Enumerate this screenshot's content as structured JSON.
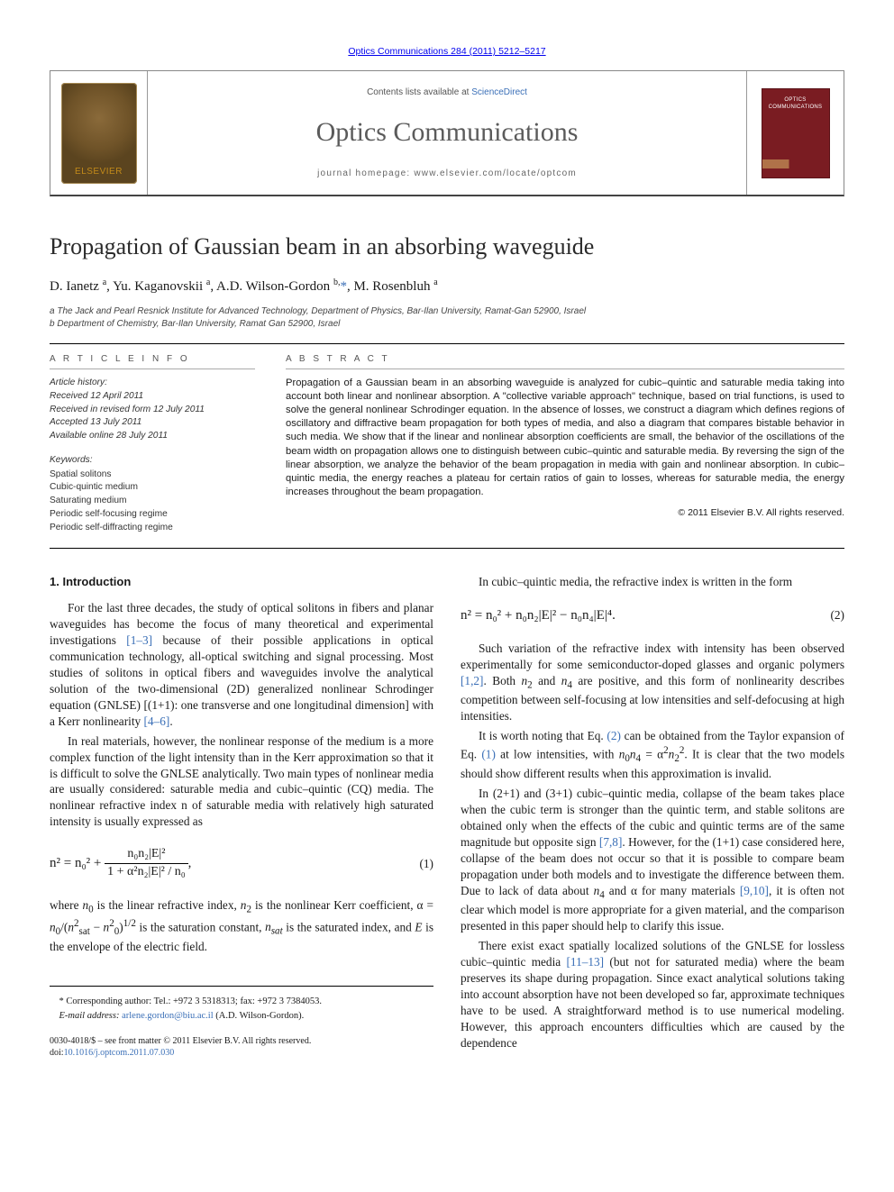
{
  "citation_line": "Optics Communications 284 (2011) 5212–5217",
  "masthead": {
    "sd_prefix": "Contents lists available at ",
    "sd_link": "ScienceDirect",
    "journal_name": "Optics Communications",
    "homepage": "journal homepage: www.elsevier.com/locate/optcom",
    "publisher_label": "ELSEVIER",
    "cover_title": "OPTICS COMMUNICATIONS"
  },
  "title": "Propagation of Gaussian beam in an absorbing waveguide",
  "authors_html": "D. Ianetz <span class='sup'>a</span>, Yu. Kaganovskii <span class='sup'>a</span>, A.D. Wilson-Gordon <span class='sup'>b,</span><a href='#' class='star'>*</a>, M. Rosenbluh <span class='sup'>a</span>",
  "affiliations": [
    "a The Jack and Pearl Resnick Institute for Advanced Technology, Department of Physics, Bar-Ilan University, Ramat-Gan 52900, Israel",
    "b Department of Chemistry, Bar-Ilan University, Ramat Gan 52900, Israel"
  ],
  "article_info": {
    "heading": "A R T I C L E   I N F O",
    "history_label": "Article history:",
    "history": [
      "Received 12 April 2011",
      "Received in revised form 12 July 2011",
      "Accepted 13 July 2011",
      "Available online 28 July 2011"
    ],
    "keywords_label": "Keywords:",
    "keywords": [
      "Spatial solitons",
      "Cubic-quintic medium",
      "Saturating medium",
      "Periodic self-focusing regime",
      "Periodic self-diffracting regime"
    ]
  },
  "abstract": {
    "heading": "A B S T R A C T",
    "text": "Propagation of a Gaussian beam in an absorbing waveguide is analyzed for cubic–quintic and saturable media taking into account both linear and nonlinear absorption. A \"collective variable approach\" technique, based on trial functions, is used to solve the general nonlinear Schrodinger equation. In the absence of losses, we construct a diagram which defines regions of oscillatory and diffractive beam propagation for both types of media, and also a diagram that compares bistable behavior in such media. We show that if the linear and nonlinear absorption coefficients are small, the behavior of the oscillations of the beam width on propagation allows one to distinguish between cubic–quintic and saturable media. By reversing the sign of the linear absorption, we analyze the behavior of the beam propagation in media with gain and nonlinear absorption. In cubic–quintic media, the energy reaches a plateau for certain ratios of gain to losses, whereas for saturable media, the energy increases throughout the beam propagation.",
    "copyright": "© 2011 Elsevier B.V. All rights reserved."
  },
  "section1_heading": "1. Introduction",
  "col_left": {
    "p1": "For the last three decades, the study of optical solitons in fibers and planar waveguides has become the focus of many theoretical and experimental investigations [1–3] because of their possible applications in optical communication technology, all-optical switching and signal processing. Most studies of solitons in optical fibers and waveguides involve the analytical solution of the two-dimensional (2D) generalized nonlinear Schrodinger equation (GNLSE) [(1+1): one transverse and one longitudinal dimension] with a Kerr nonlinearity [4–6].",
    "p2": "In real materials, however, the nonlinear response of the medium is a more complex function of the light intensity than in the Kerr approximation so that it is difficult to solve the GNLSE analytically. Two main types of nonlinear media are usually considered: saturable media and cubic–quintic (CQ) media. The nonlinear refractive index n of saturable media with relatively high saturated intensity is usually expressed as",
    "eq1_lhs": "n² = n₀² + ",
    "eq1_num": "n₀n₂|E|²",
    "eq1_den": "1 + α²n₂|E|² / n₀",
    "eq1_comma": ",",
    "eq1_no": "(1)",
    "p3": "where n₀ is the linear refractive index, n₂ is the nonlinear Kerr coefficient, α = n₀/(n²sat − n₀²)^{1/2} is the saturation constant, n_{sat} is the saturated index, and E is the envelope of the electric field."
  },
  "col_right": {
    "p1a": "In cubic–quintic media, the refractive index is written in the form",
    "eq2": "n² = n₀² + n₀n₂|E|² − n₀n₄|E|⁴.",
    "eq2_no": "(2)",
    "p2": "Such variation of the refractive index with intensity has been observed experimentally for some semiconductor-doped glasses and organic polymers [1,2]. Both n₂ and n₄ are positive, and this form of nonlinearity describes competition between self-focusing at low intensities and self-defocusing at high intensities.",
    "p3": "It is worth noting that Eq. (2) can be obtained from the Taylor expansion of Eq. (1) at low intensities, with n₀n₄ = α²n₂². It is clear that the two models should show different results when this approximation is invalid.",
    "p4": "In (2+1) and (3+1) cubic–quintic media, collapse of the beam takes place when the cubic term is stronger than the quintic term, and stable solitons are obtained only when the effects of the cubic and quintic terms are of the same magnitude but opposite sign [7,8]. However, for the (1+1) case considered here, collapse of the beam does not occur so that it is possible to compare beam propagation under both models and to investigate the difference between them. Due to lack of data about n₄ and α for many materials [9,10], it is often not clear which model is more appropriate for a given material, and the comparison presented in this paper should help to clarify this issue.",
    "p5": "There exist exact spatially localized solutions of the GNLSE for lossless cubic–quintic media [11–13] (but not for saturated media) where the beam preserves its shape during propagation. Since exact analytical solutions taking into account absorption have not been developed so far, approximate techniques have to be used. A straightforward method is to use numerical modeling. However, this approach encounters difficulties which are caused by the dependence"
  },
  "footnote": {
    "corr": "* Corresponding author: Tel.: +972 3 5318313; fax: +972 3 7384053.",
    "email_lbl": "E-mail address: ",
    "email": "arlene.gordon@biu.ac.il",
    "email_name": " (A.D. Wilson-Gordon)."
  },
  "legal": {
    "line1": "0030-4018/$ – see front matter © 2011 Elsevier B.V. All rights reserved.",
    "doi_lbl": "doi:",
    "doi": "10.1016/j.optcom.2011.07.030"
  },
  "refs": {
    "r13": "[1–3]",
    "r46": "[4–6]",
    "r12": "[1,2]",
    "e2": "(2)",
    "e1": "(1)",
    "r78": "[7,8]",
    "r910": "[9,10]",
    "r1113": "[11–13]"
  },
  "colors": {
    "link": "#3a6fb7",
    "text": "#1a1a1a",
    "cover": "#7a1c22",
    "rule": "#000000"
  },
  "typography": {
    "body_font": "Times New Roman, serif",
    "ui_font": "Helvetica Neue, Arial, sans-serif",
    "title_size_pt": 19,
    "journal_name_pt": 22,
    "body_pt": 10,
    "info_pt": 7.5
  }
}
